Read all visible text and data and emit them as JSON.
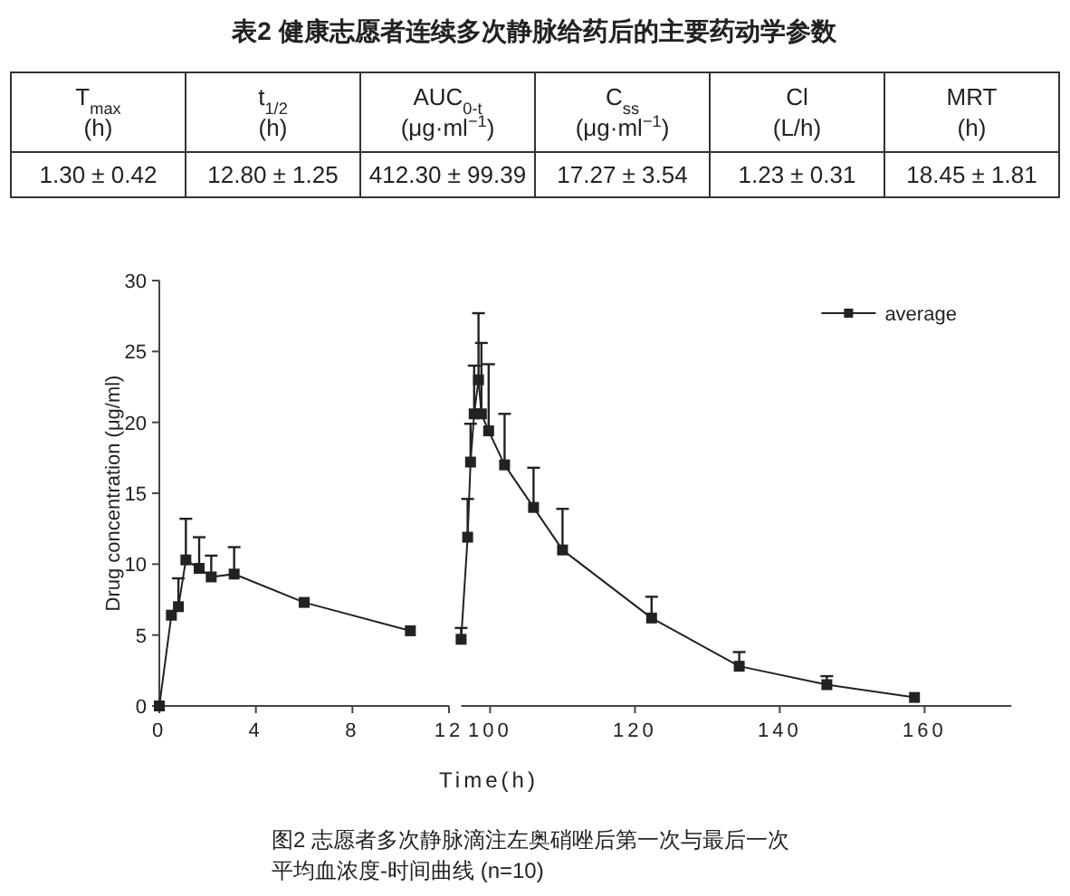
{
  "chart_data": [
    {
      "type": "other",
      "title": "表2 健康志愿者连续多次静脉给药后的主要药动学参数",
      "categories": [
        "T$_{max}$ (h)",
        "t$_{1/2}$ (h)",
        "AUC$_{0-t}$ (μg·ml$^{−1}$)",
        "C$_{ss}$ (μg·ml$^{−1}$)",
        "Cl (L/h)",
        "MRT (h)"
      ],
      "cell_labels": [
        [
          "1.30 ± 0.42",
          "12.80 ± 1.25",
          "412.30 ± 99.39",
          "17.27 ± 3.54",
          "1.23 ± 0.31",
          "18.45 ± 1.81"
        ]
      ]
    },
    {
      "type": "line",
      "ylabel": "Drug concentration (μg/ml)",
      "xlim": [
        0,
        12
      ],
      "xticks": [
        0,
        4,
        8,
        12
      ],
      "ylim": [
        0,
        30
      ],
      "yticks": [
        0,
        5,
        10,
        15,
        20,
        25,
        30
      ],
      "marker": "square",
      "grid": false,
      "series": [
        {
          "color": "#222222",
          "x": [
            0,
            0.5,
            0.79,
            1.1,
            1.65,
            2.15,
            3.1,
            6.0,
            10.4
          ],
          "values": [
            0,
            6.4,
            7.0,
            10.3,
            9.7,
            9.1,
            9.3,
            7.3,
            5.3
          ],
          "errors": [
            null,
            null,
            [
              7.0,
              9.0
            ],
            [
              10.3,
              13.2
            ],
            [
              9.7,
              11.9
            ],
            [
              9.1,
              10.6
            ],
            [
              9.3,
              11.2
            ],
            null,
            null
          ]
        }
      ]
    },
    {
      "type": "line",
      "xlabel": "Time(h)",
      "xlim": [
        96,
        172
      ],
      "xticks": [
        100,
        120,
        140,
        160
      ],
      "ylim": [
        0,
        30
      ],
      "tick_labels": "x",
      "marker": "square",
      "grid": false,
      "legend": "top right",
      "annotations": [
        "图2 志愿者多次静脉滴注左奥硝唑后第一次与最后一次",
        "平均血浓度-时间曲线 (n=10)"
      ],
      "series": [
        {
          "name": "average",
          "color": "#222222",
          "x": [
            96,
            96.9,
            97.3,
            97.8,
            98.4,
            98.8,
            99.8,
            102,
            106,
            110,
            122.3,
            134.4,
            146.5,
            158.6
          ],
          "values": [
            4.7,
            11.9,
            17.2,
            20.6,
            23.0,
            20.6,
            19.4,
            17.0,
            14.0,
            11.0,
            6.2,
            2.8,
            1.5,
            0.6
          ],
          "errors": [
            [
              4.7,
              5.5
            ],
            [
              11.9,
              14.6
            ],
            [
              17.2,
              19.9
            ],
            [
              20.6,
              24.0
            ],
            [
              23.0,
              27.7
            ],
            [
              20.6,
              25.6
            ],
            [
              19.4,
              24.1
            ],
            [
              17.0,
              20.6
            ],
            [
              14.0,
              16.8
            ],
            [
              11.0,
              13.9
            ],
            [
              6.2,
              7.7
            ],
            [
              2.8,
              3.8
            ],
            [
              1.5,
              2.1
            ],
            null
          ]
        }
      ]
    }
  ]
}
